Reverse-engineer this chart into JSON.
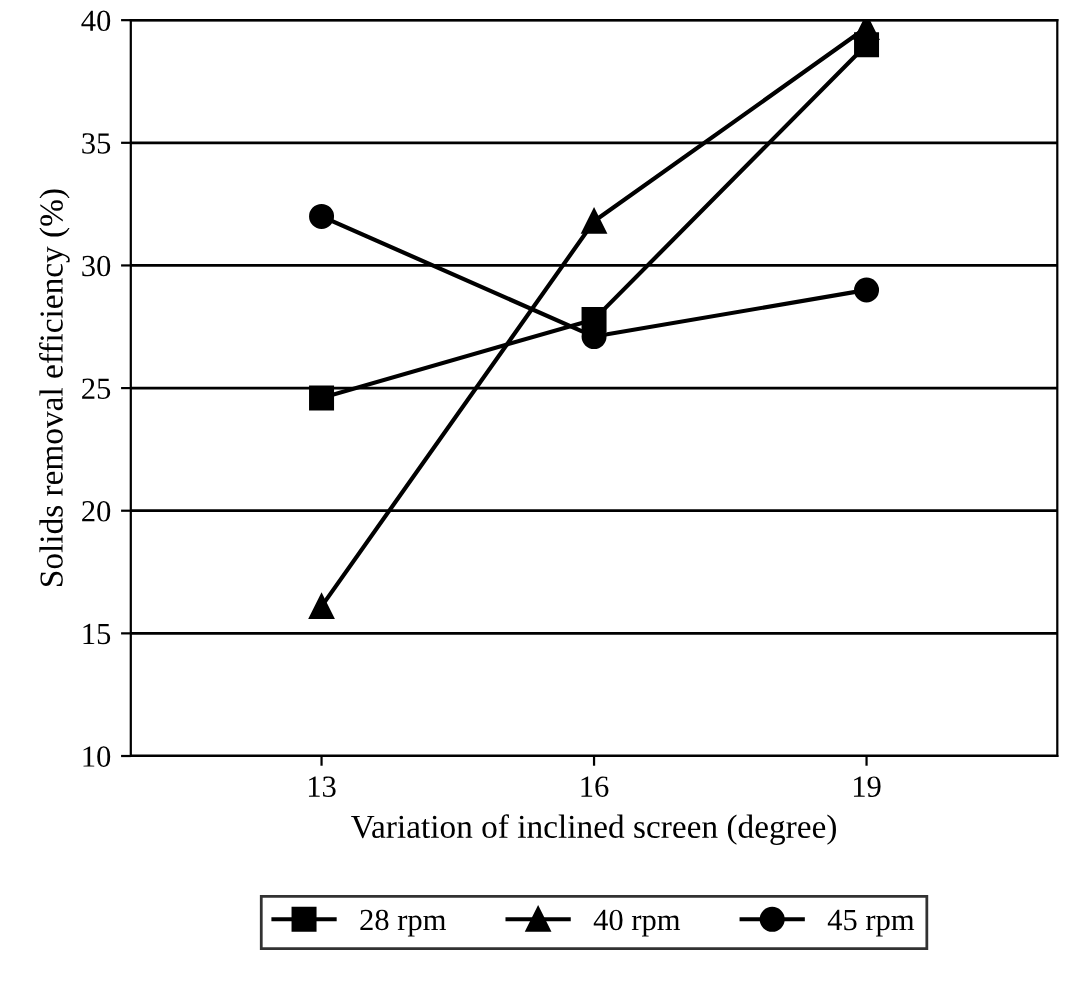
{
  "chart_data": {
    "type": "line",
    "xlabel": "Variation of inclined screen (degree)",
    "ylabel": "Solids removal efficiency (%)",
    "categories": [
      "13",
      "16",
      "19"
    ],
    "series": [
      {
        "name": "28 rpm",
        "color": "#000000",
        "marker": "square",
        "values": [
          24.6,
          27.8,
          39.0
        ]
      },
      {
        "name": "40 rpm",
        "color": "#000000",
        "marker": "triangle",
        "values": [
          16.1,
          31.8,
          39.7
        ]
      },
      {
        "name": "45 rpm",
        "color": "#000000",
        "marker": "circle",
        "values": [
          32.0,
          27.1,
          29.0
        ]
      }
    ],
    "ylim": [
      10,
      40
    ],
    "yticks": [
      10,
      15,
      20,
      25,
      30,
      35,
      40
    ],
    "grid": "y",
    "legend": "bottom",
    "line_style": "solid"
  }
}
